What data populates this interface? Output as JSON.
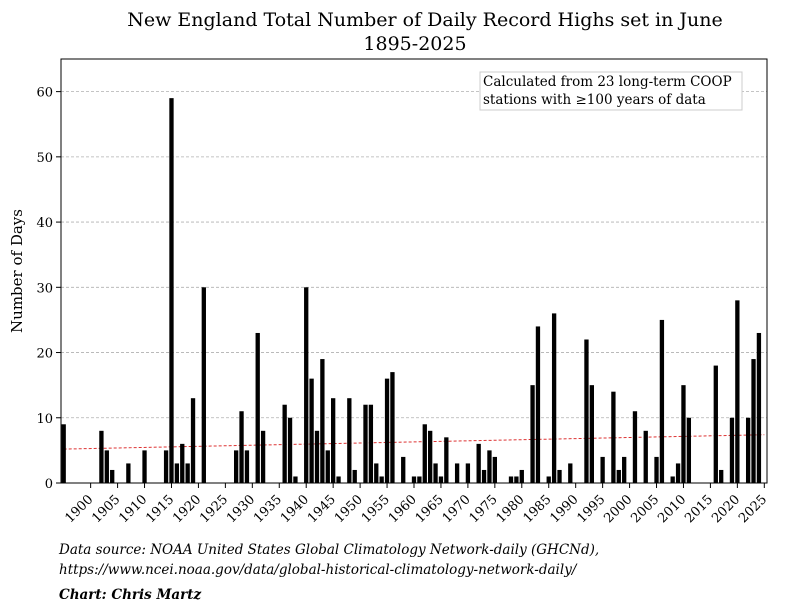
{
  "chart_data": {
    "type": "bar",
    "title_lines": [
      "New England Total Number of Daily Record Highs set in June",
      "1895-2025"
    ],
    "xlabel": "",
    "ylabel": "Number of Days",
    "xlim": [
      1894.5,
      2025.5
    ],
    "ylim": [
      0,
      65
    ],
    "yticks": [
      0,
      10,
      20,
      30,
      40,
      50,
      60
    ],
    "xticks": [
      1900,
      1905,
      1910,
      1915,
      1920,
      1925,
      1930,
      1935,
      1940,
      1945,
      1950,
      1955,
      1960,
      1965,
      1970,
      1975,
      1980,
      1985,
      1990,
      1995,
      2000,
      2005,
      2010,
      2015,
      2020,
      2025
    ],
    "grid": "horizontal dashed",
    "annotation_lines": [
      "Calculated from 23 long-term COOP",
      "stations with ≥100 years of data"
    ],
    "annotation_position": "top-right",
    "bar_color": "#000000",
    "trend_color": "#dd3333",
    "trend_line": {
      "start": [
        1895,
        5.2
      ],
      "end": [
        2025,
        7.4
      ]
    },
    "years": [
      1895,
      1896,
      1897,
      1898,
      1899,
      1900,
      1901,
      1902,
      1903,
      1904,
      1905,
      1906,
      1907,
      1908,
      1909,
      1910,
      1911,
      1912,
      1913,
      1914,
      1915,
      1916,
      1917,
      1918,
      1919,
      1920,
      1921,
      1922,
      1923,
      1924,
      1925,
      1926,
      1927,
      1928,
      1929,
      1930,
      1931,
      1932,
      1933,
      1934,
      1935,
      1936,
      1937,
      1938,
      1939,
      1940,
      1941,
      1942,
      1943,
      1944,
      1945,
      1946,
      1947,
      1948,
      1949,
      1950,
      1951,
      1952,
      1953,
      1954,
      1955,
      1956,
      1957,
      1958,
      1959,
      1960,
      1961,
      1962,
      1963,
      1964,
      1965,
      1966,
      1967,
      1968,
      1969,
      1970,
      1971,
      1972,
      1973,
      1974,
      1975,
      1976,
      1977,
      1978,
      1979,
      1980,
      1981,
      1982,
      1983,
      1984,
      1985,
      1986,
      1987,
      1988,
      1989,
      1990,
      1991,
      1992,
      1993,
      1994,
      1995,
      1996,
      1997,
      1998,
      1999,
      2000,
      2001,
      2002,
      2003,
      2004,
      2005,
      2006,
      2007,
      2008,
      2009,
      2010,
      2011,
      2012,
      2013,
      2014,
      2015,
      2016,
      2017,
      2018,
      2019,
      2020,
      2021,
      2022,
      2023,
      2024,
      2025
    ],
    "values": [
      9,
      0,
      0,
      0,
      0,
      0,
      0,
      8,
      5,
      2,
      0,
      0,
      3,
      0,
      0,
      5,
      0,
      0,
      0,
      5,
      59,
      3,
      6,
      3,
      13,
      0,
      30,
      0,
      0,
      0,
      0,
      0,
      5,
      11,
      5,
      0,
      23,
      8,
      0,
      0,
      0,
      12,
      10,
      1,
      0,
      30,
      16,
      8,
      19,
      5,
      13,
      1,
      0,
      13,
      2,
      0,
      12,
      12,
      3,
      1,
      16,
      17,
      0,
      4,
      0,
      1,
      1,
      9,
      8,
      3,
      1,
      7,
      0,
      3,
      0,
      3,
      0,
      6,
      2,
      5,
      4,
      0,
      0,
      1,
      1,
      2,
      0,
      15,
      24,
      0,
      1,
      26,
      2,
      0,
      3,
      0,
      0,
      22,
      15,
      0,
      4,
      0,
      14,
      2,
      4,
      0,
      11,
      0,
      8,
      0,
      4,
      25,
      0,
      1,
      3,
      15,
      10,
      0,
      0,
      0,
      0,
      18,
      2,
      0,
      10,
      28,
      0,
      10,
      19,
      23,
      0
    ]
  },
  "footer": {
    "source_line1": "Data source: NOAA United States Global Climatology Network-daily (GHCNd),",
    "source_line2": " https://www.ncei.noaa.gov/data/global-historical-climatology-network-daily/",
    "credit": "Chart: Chris Martz"
  }
}
